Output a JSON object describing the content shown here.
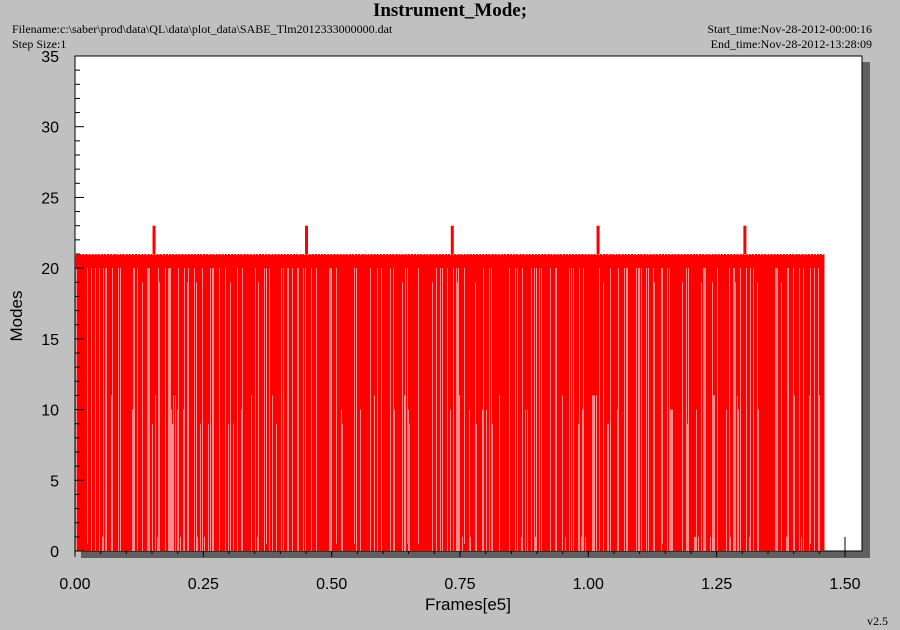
{
  "header": {
    "title": "Instrument_Mode;",
    "filename": "Filename:c:\\saber\\prod\\data\\QL\\data\\plot_data\\SABE_Tlm2012333000000.dat",
    "step_size": "Step Size:1",
    "start_time": "Start_time:Nov-28-2012-00:00:16",
    "end_time": "End_time:Nov-28-2012-13:28:09"
  },
  "version": "v2.5",
  "colors": {
    "background": "#c0c0c0",
    "plot_area": "#ffffff",
    "series": "#ff0000",
    "shadow": "#606060"
  },
  "chart_data": {
    "type": "line",
    "title": "Instrument_Mode;",
    "xlabel": "Frames[e5]",
    "ylabel": "Modes",
    "xlim": [
      0,
      1.55
    ],
    "ylim": [
      0,
      35
    ],
    "x_ticks": [
      "0.00",
      "0.25",
      "0.50",
      "0.75",
      "1.00",
      "1.25",
      "1.50"
    ],
    "y_ticks": [
      "0",
      "5",
      "10",
      "15",
      "20",
      "25",
      "30",
      "35"
    ],
    "grid": false,
    "legend": "none",
    "series": [
      {
        "baseline_value": 21,
        "x_range": [
          0.0,
          1.46
        ],
        "drop_value": 0,
        "peaks": [
          {
            "x": 0.153,
            "y": 23
          },
          {
            "x": 0.45,
            "y": 23
          },
          {
            "x": 0.734,
            "y": 23
          },
          {
            "x": 1.018,
            "y": 23
          },
          {
            "x": 1.304,
            "y": 23
          }
        ],
        "level_20_segment": {
          "x": [
            1.45,
            1.46
          ],
          "y": 20
        },
        "isolated_point": {
          "x": 1.5,
          "y": 1
        }
      }
    ]
  }
}
